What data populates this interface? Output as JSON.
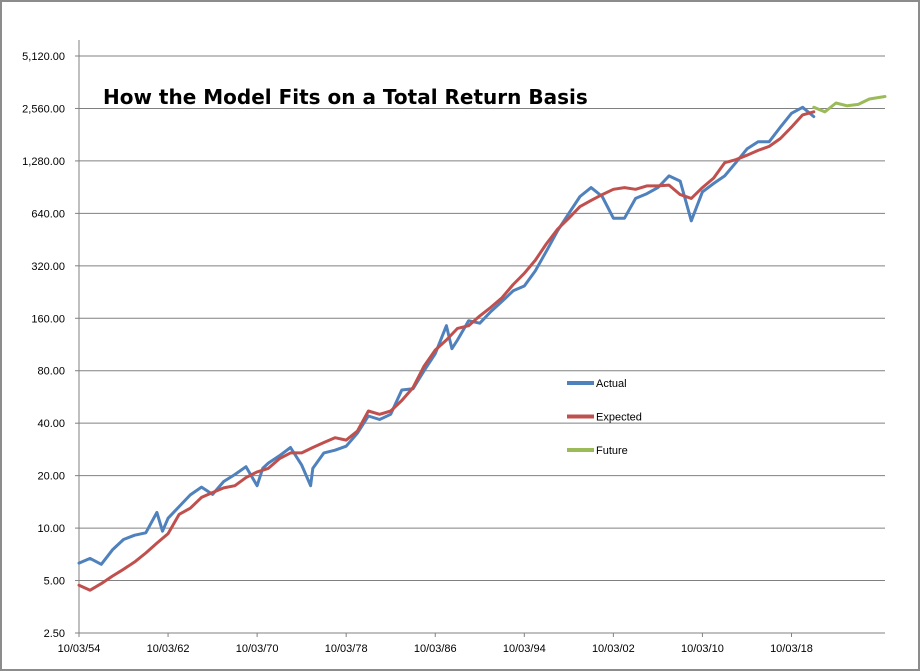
{
  "chart_data": {
    "type": "line",
    "title": "How the Model Fits on a Total Return Basis",
    "xlabel": "",
    "ylabel": "",
    "y_scale": "log2",
    "grid": "horizontal",
    "legend_placement": "center-right",
    "ylim": [
      2.5,
      5120
    ],
    "y_ticks": [
      "2.50",
      "5.00",
      "10.00",
      "20.00",
      "40.00",
      "80.00",
      "160.00",
      "320.00",
      "640.00",
      "1,280.00",
      "2,560.00",
      "5,120.00"
    ],
    "y_tick_values": [
      2.5,
      5,
      10,
      20,
      40,
      80,
      160,
      320,
      640,
      1280,
      2560,
      5120
    ],
    "x_ticks": [
      "10/03/54",
      "10/03/62",
      "10/03/70",
      "10/03/78",
      "10/03/86",
      "10/03/94",
      "10/03/02",
      "10/03/10",
      "10/03/18"
    ],
    "x_tick_years": [
      1954,
      1962,
      1970,
      1978,
      1986,
      1994,
      2002,
      2010,
      2018
    ],
    "xlim": [
      1954,
      2026.4
    ],
    "series": [
      {
        "name": "Actual",
        "color": "#4f81bd",
        "points": [
          [
            1954.0,
            6.3
          ],
          [
            1955.0,
            6.7
          ],
          [
            1956.0,
            6.2
          ],
          [
            1957.0,
            7.5
          ],
          [
            1958.0,
            8.6
          ],
          [
            1959.0,
            9.1
          ],
          [
            1960.0,
            9.4
          ],
          [
            1961.0,
            12.3
          ],
          [
            1961.5,
            9.6
          ],
          [
            1962.0,
            11.4
          ],
          [
            1963.0,
            13.3
          ],
          [
            1964.0,
            15.5
          ],
          [
            1965.0,
            17.2
          ],
          [
            1966.0,
            15.6
          ],
          [
            1967.0,
            18.5
          ],
          [
            1968.0,
            20.3
          ],
          [
            1969.0,
            22.5
          ],
          [
            1970.0,
            17.5
          ],
          [
            1970.5,
            22.0
          ],
          [
            1971.0,
            23.6
          ],
          [
            1972.0,
            26.0
          ],
          [
            1973.0,
            29.0
          ],
          [
            1974.0,
            23.0
          ],
          [
            1974.8,
            17.5
          ],
          [
            1975.0,
            22.0
          ],
          [
            1976.0,
            27.0
          ],
          [
            1977.0,
            28.0
          ],
          [
            1978.0,
            29.5
          ],
          [
            1979.0,
            35.0
          ],
          [
            1980.0,
            44.0
          ],
          [
            1981.0,
            42.0
          ],
          [
            1982.0,
            45.0
          ],
          [
            1983.0,
            62.0
          ],
          [
            1984.0,
            63.0
          ],
          [
            1985.0,
            80.0
          ],
          [
            1986.0,
            100.0
          ],
          [
            1987.0,
            145.0
          ],
          [
            1987.5,
            107.0
          ],
          [
            1988.0,
            120.0
          ],
          [
            1989.0,
            155.0
          ],
          [
            1990.0,
            150.0
          ],
          [
            1991.0,
            175.0
          ],
          [
            1992.0,
            200.0
          ],
          [
            1993.0,
            230.0
          ],
          [
            1994.0,
            245.0
          ],
          [
            1995.0,
            300.0
          ],
          [
            1996.0,
            390.0
          ],
          [
            1997.0,
            510.0
          ],
          [
            1998.0,
            640.0
          ],
          [
            1999.0,
            800.0
          ],
          [
            2000.0,
            900.0
          ],
          [
            2001.0,
            800.0
          ],
          [
            2002.0,
            600.0
          ],
          [
            2003.0,
            600.0
          ],
          [
            2004.0,
            780.0
          ],
          [
            2005.0,
            830.0
          ],
          [
            2006.0,
            900.0
          ],
          [
            2007.0,
            1050.0
          ],
          [
            2008.0,
            980.0
          ],
          [
            2009.0,
            580.0
          ],
          [
            2010.0,
            850.0
          ],
          [
            2011.0,
            950.0
          ],
          [
            2012.0,
            1050.0
          ],
          [
            2013.0,
            1250.0
          ],
          [
            2014.0,
            1500.0
          ],
          [
            2015.0,
            1650.0
          ],
          [
            2016.0,
            1650.0
          ],
          [
            2017.0,
            2000.0
          ],
          [
            2018.0,
            2400.0
          ],
          [
            2019.0,
            2600.0
          ],
          [
            2020.0,
            2300.0
          ]
        ]
      },
      {
        "name": "Expected",
        "color": "#c0504d",
        "points": [
          [
            1954.0,
            4.7
          ],
          [
            1955.0,
            4.4
          ],
          [
            1956.0,
            4.8
          ],
          [
            1957.0,
            5.3
          ],
          [
            1958.0,
            5.8
          ],
          [
            1959.0,
            6.4
          ],
          [
            1960.0,
            7.2
          ],
          [
            1961.0,
            8.2
          ],
          [
            1962.0,
            9.3
          ],
          [
            1963.0,
            12.0
          ],
          [
            1964.0,
            13.0
          ],
          [
            1965.0,
            15.0
          ],
          [
            1966.0,
            16.0
          ],
          [
            1967.0,
            17.0
          ],
          [
            1968.0,
            17.5
          ],
          [
            1969.0,
            19.5
          ],
          [
            1970.0,
            21.0
          ],
          [
            1971.0,
            22.0
          ],
          [
            1972.0,
            25.0
          ],
          [
            1973.0,
            27.0
          ],
          [
            1974.0,
            27.0
          ],
          [
            1975.0,
            29.0
          ],
          [
            1976.0,
            31.0
          ],
          [
            1977.0,
            33.0
          ],
          [
            1978.0,
            32.0
          ],
          [
            1979.0,
            36.0
          ],
          [
            1980.0,
            47.0
          ],
          [
            1981.0,
            45.0
          ],
          [
            1982.0,
            47.0
          ],
          [
            1983.0,
            54.0
          ],
          [
            1984.0,
            64.0
          ],
          [
            1985.0,
            85.0
          ],
          [
            1986.0,
            105.0
          ],
          [
            1987.0,
            120.0
          ],
          [
            1988.0,
            140.0
          ],
          [
            1989.0,
            145.0
          ],
          [
            1990.0,
            165.0
          ],
          [
            1991.0,
            185.0
          ],
          [
            1992.0,
            210.0
          ],
          [
            1993.0,
            250.0
          ],
          [
            1994.0,
            290.0
          ],
          [
            1995.0,
            345.0
          ],
          [
            1996.0,
            430.0
          ],
          [
            1997.0,
            520.0
          ],
          [
            1998.0,
            600.0
          ],
          [
            1999.0,
            700.0
          ],
          [
            2000.0,
            760.0
          ],
          [
            2001.0,
            820.0
          ],
          [
            2002.0,
            880.0
          ],
          [
            2003.0,
            900.0
          ],
          [
            2004.0,
            880.0
          ],
          [
            2005.0,
            920.0
          ],
          [
            2006.0,
            920.0
          ],
          [
            2007.0,
            930.0
          ],
          [
            2008.0,
            820.0
          ],
          [
            2009.0,
            780.0
          ],
          [
            2010.0,
            900.0
          ],
          [
            2011.0,
            1020.0
          ],
          [
            2012.0,
            1250.0
          ],
          [
            2013.0,
            1300.0
          ],
          [
            2014.0,
            1380.0
          ],
          [
            2015.0,
            1470.0
          ],
          [
            2016.0,
            1550.0
          ],
          [
            2017.0,
            1720.0
          ],
          [
            2018.0,
            2000.0
          ],
          [
            2019.0,
            2350.0
          ],
          [
            2020.0,
            2450.0
          ]
        ]
      },
      {
        "name": "Future",
        "color": "#9bbb59",
        "points": [
          [
            2020.0,
            2600.0
          ],
          [
            2021.0,
            2450.0
          ],
          [
            2022.0,
            2750.0
          ],
          [
            2023.0,
            2650.0
          ],
          [
            2024.0,
            2700.0
          ],
          [
            2025.0,
            2900.0
          ],
          [
            2026.4,
            3000.0
          ]
        ]
      }
    ]
  }
}
